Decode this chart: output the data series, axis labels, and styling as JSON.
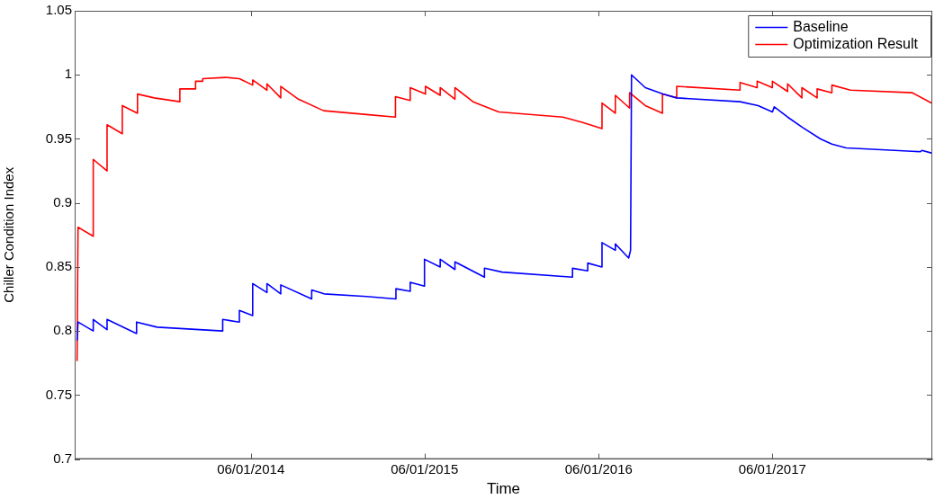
{
  "chart_data": {
    "type": "line",
    "xlabel": "Time",
    "ylabel": "Chiller Condition Index",
    "xlim": [
      "2013-05-27",
      "2018-05-03"
    ],
    "xticks": [
      {
        "value": "2014-06-01",
        "label": "06/01/2014"
      },
      {
        "value": "2015-06-01",
        "label": "06/01/2015"
      },
      {
        "value": "2016-06-01",
        "label": "06/01/2016"
      },
      {
        "value": "2017-06-01",
        "label": "06/01/2017"
      }
    ],
    "ylim": [
      0.7,
      1.05
    ],
    "yticks": [
      0.7,
      0.75,
      0.8,
      0.85,
      0.9,
      0.95,
      1,
      1.05
    ],
    "grid": false,
    "legend": "top right",
    "line_style": "solid",
    "series": [
      {
        "name": "Baseline",
        "color": "#0000ff",
        "x": [
          "2013-06-01",
          "2013-06-03",
          "2013-07-05",
          "2013-07-05",
          "2013-08-03",
          "2013-08-03",
          "2013-10-04",
          "2013-10-04",
          "2013-11-16",
          "2014-04-03",
          "2014-04-03",
          "2014-05-08",
          "2014-05-08",
          "2014-06-05",
          "2014-06-05",
          "2014-07-05",
          "2014-07-05",
          "2014-08-03",
          "2014-08-03",
          "2014-10-07",
          "2014-10-07",
          "2014-11-02",
          "2015-01-30",
          "2015-04-02",
          "2015-04-02",
          "2015-05-02",
          "2015-05-02",
          "2015-06-01",
          "2015-06-01",
          "2015-07-04",
          "2015-07-04",
          "2015-08-04",
          "2015-08-04",
          "2015-10-05",
          "2015-10-05",
          "2015-11-11",
          "2016-04-07",
          "2016-04-07",
          "2016-05-09",
          "2016-05-09",
          "2016-06-08",
          "2016-06-08",
          "2016-07-06",
          "2016-07-06",
          "2016-08-03",
          "2016-08-07",
          "2016-08-09",
          "2016-09-07",
          "2016-10-14",
          "2016-11-12",
          "2017-03-25",
          "2017-05-02",
          "2017-06-01",
          "2017-06-05",
          "2017-07-03",
          "2017-08-03",
          "2017-09-10",
          "2017-10-04",
          "2017-11-03",
          "2018-04-08",
          "2018-04-11",
          "2018-05-01"
        ],
        "values": [
          0.793,
          0.807,
          0.8,
          0.809,
          0.801,
          0.809,
          0.798,
          0.807,
          0.803,
          0.8,
          0.809,
          0.807,
          0.816,
          0.812,
          0.837,
          0.83,
          0.837,
          0.829,
          0.836,
          0.825,
          0.832,
          0.829,
          0.827,
          0.825,
          0.833,
          0.831,
          0.838,
          0.835,
          0.856,
          0.85,
          0.856,
          0.848,
          0.854,
          0.842,
          0.849,
          0.846,
          0.842,
          0.849,
          0.847,
          0.853,
          0.85,
          0.869,
          0.863,
          0.868,
          0.857,
          0.863,
          1.0,
          0.99,
          0.985,
          0.982,
          0.979,
          0.976,
          0.971,
          0.975,
          0.967,
          0.959,
          0.95,
          0.946,
          0.943,
          0.94,
          0.941,
          0.939
        ]
      },
      {
        "name": "Optimization Result",
        "color": "#ff0000",
        "x": [
          "2013-06-01",
          "2013-06-03",
          "2013-07-05",
          "2013-07-05",
          "2013-08-03",
          "2013-08-03",
          "2013-09-04",
          "2013-09-04",
          "2013-10-06",
          "2013-10-06",
          "2013-11-10",
          "2014-01-03",
          "2014-01-03",
          "2014-02-05",
          "2014-02-05",
          "2014-02-20",
          "2014-02-20",
          "2014-04-09",
          "2014-05-08",
          "2014-06-05",
          "2014-06-05",
          "2014-07-05",
          "2014-07-05",
          "2014-08-03",
          "2014-08-03",
          "2014-09-09",
          "2014-11-01",
          "2015-01-30",
          "2015-04-01",
          "2015-04-01",
          "2015-05-02",
          "2015-05-02",
          "2015-06-03",
          "2015-06-03",
          "2015-07-04",
          "2015-07-04",
          "2015-08-04",
          "2015-08-04",
          "2015-09-11",
          "2015-11-04",
          "2016-03-18",
          "2016-04-27",
          "2016-06-08",
          "2016-06-08",
          "2016-07-06",
          "2016-07-06",
          "2016-08-05",
          "2016-08-05",
          "2016-09-07",
          "2016-10-13",
          "2016-10-13",
          "2016-11-12",
          "2016-11-12",
          "2017-03-25",
          "2017-03-25",
          "2017-04-30",
          "2017-04-30",
          "2017-06-01",
          "2017-06-01",
          "2017-07-03",
          "2017-07-03",
          "2017-08-02",
          "2017-08-02",
          "2017-09-03",
          "2017-09-03",
          "2017-10-04",
          "2017-10-04",
          "2017-11-12",
          "2018-03-22",
          "2018-05-01"
        ],
        "values": [
          0.777,
          0.881,
          0.874,
          0.934,
          0.925,
          0.961,
          0.954,
          0.976,
          0.97,
          0.985,
          0.982,
          0.979,
          0.989,
          0.989,
          0.995,
          0.995,
          0.997,
          0.998,
          0.997,
          0.992,
          0.996,
          0.988,
          0.993,
          0.982,
          0.991,
          0.981,
          0.972,
          0.969,
          0.967,
          0.983,
          0.98,
          0.99,
          0.985,
          0.991,
          0.984,
          0.99,
          0.981,
          0.99,
          0.979,
          0.971,
          0.967,
          0.963,
          0.958,
          0.978,
          0.97,
          0.984,
          0.974,
          0.986,
          0.976,
          0.97,
          0.985,
          0.982,
          0.991,
          0.988,
          0.994,
          0.99,
          0.995,
          0.99,
          0.995,
          0.987,
          0.993,
          0.982,
          0.99,
          0.982,
          0.989,
          0.986,
          0.992,
          0.988,
          0.986,
          0.978
        ]
      }
    ]
  }
}
